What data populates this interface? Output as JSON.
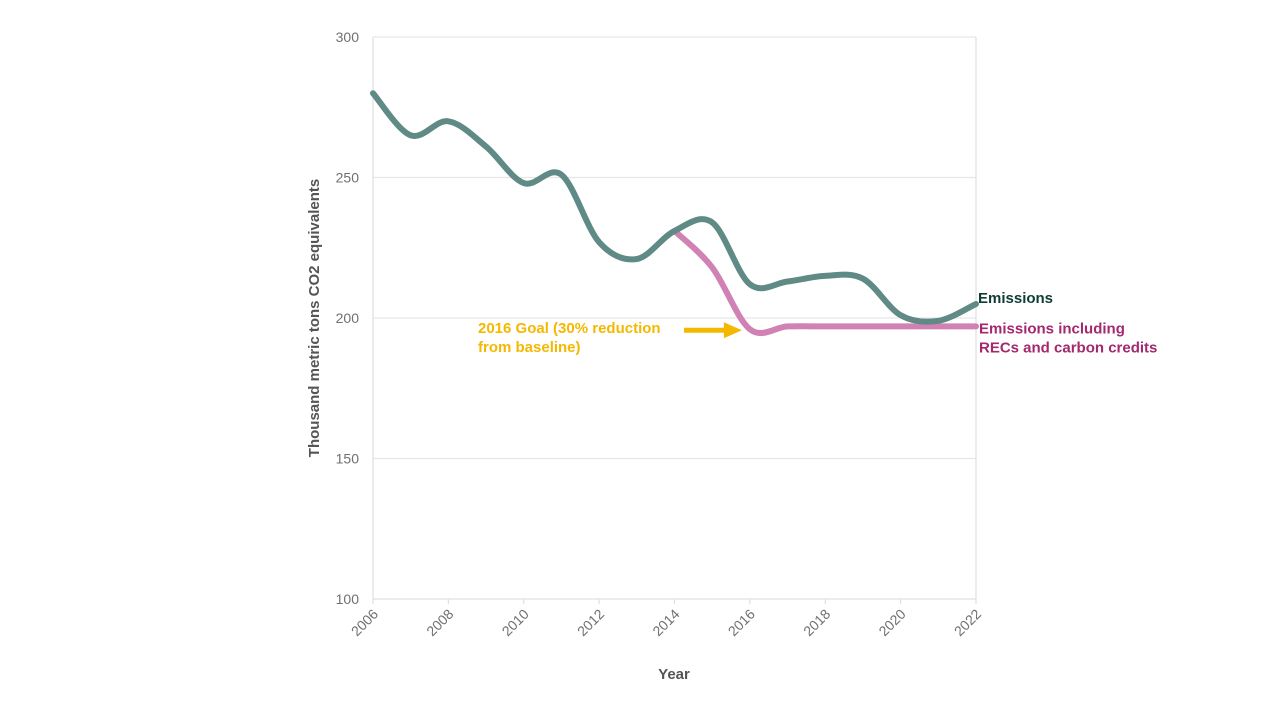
{
  "chart_data": {
    "type": "line",
    "title": "",
    "xlabel": "Year",
    "ylabel": "Thousand metric tons CO2 equivalents",
    "xlim": [
      2006,
      2022
    ],
    "ylim": [
      100,
      300
    ],
    "x_ticks": [
      2006,
      2008,
      2010,
      2012,
      2014,
      2016,
      2018,
      2020,
      2022
    ],
    "y_ticks": [
      100,
      150,
      200,
      250,
      300
    ],
    "grid": true,
    "legend": "none (series labeled at line ends)",
    "series": [
      {
        "name": "Emissions",
        "color": "#5f8a86",
        "label_color": "#0f3d35",
        "x": [
          2006,
          2007,
          2008,
          2009,
          2010,
          2011,
          2012,
          2013,
          2014,
          2015,
          2016,
          2017,
          2018,
          2019,
          2020,
          2021,
          2022
        ],
        "values": [
          280,
          265,
          270,
          261,
          248,
          251,
          227,
          221,
          231,
          234,
          212,
          213,
          215,
          214,
          201,
          199,
          205
        ]
      },
      {
        "name": "Emissions including RECs and carbon credits",
        "label_lines": [
          "Emissions including",
          "RECs and carbon credits"
        ],
        "color": "#cf82b3",
        "label_color": "#a3286e",
        "x": [
          2014,
          2015,
          2016,
          2017,
          2018,
          2019,
          2020,
          2021,
          2022
        ],
        "values": [
          231,
          218,
          196,
          197,
          197,
          197,
          197,
          197,
          197
        ]
      }
    ],
    "annotations": [
      {
        "text_lines": [
          "2016 Goal (30% reduction",
          "from baseline)"
        ],
        "color": "#f5b800",
        "points_to": {
          "x": 2016,
          "y": 196
        }
      }
    ]
  }
}
